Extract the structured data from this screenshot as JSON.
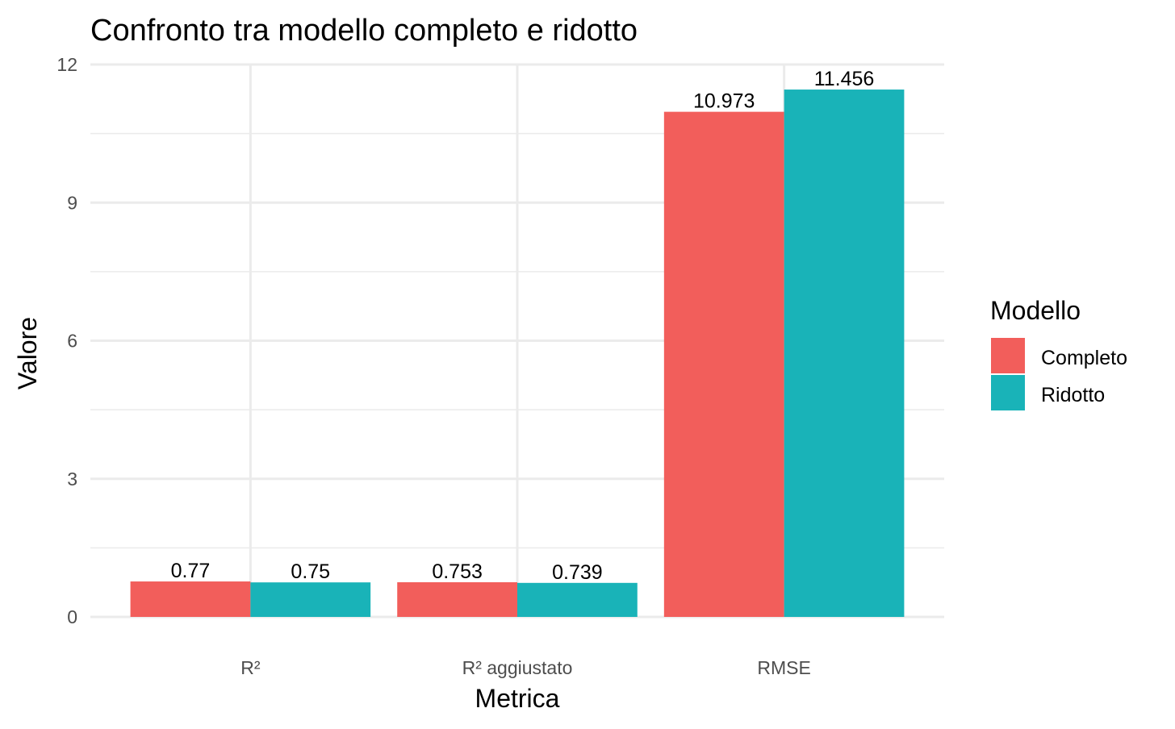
{
  "chart_data": {
    "type": "bar",
    "title": "Confronto tra modello completo e ridotto",
    "xlabel": "Metrica",
    "ylabel": "Valore",
    "categories": [
      "R²",
      "R² aggiustato",
      "RMSE"
    ],
    "series": [
      {
        "name": "Completo",
        "values": [
          0.77,
          0.753,
          10.973
        ],
        "labels": [
          "0.77",
          "0.753",
          "10.973"
        ],
        "color": "#F25E5B"
      },
      {
        "name": "Ridotto",
        "values": [
          0.75,
          0.739,
          11.456
        ],
        "labels": [
          "0.75",
          "0.739",
          "11.456"
        ],
        "color": "#19B3B8"
      }
    ],
    "ylim": [
      0,
      12
    ],
    "yticks": [
      0,
      3,
      6,
      9,
      12
    ],
    "ytick_labels": [
      "0",
      "3",
      "6",
      "9",
      "12"
    ],
    "grid": true,
    "legend": {
      "title": "Modello",
      "position": "right"
    }
  }
}
